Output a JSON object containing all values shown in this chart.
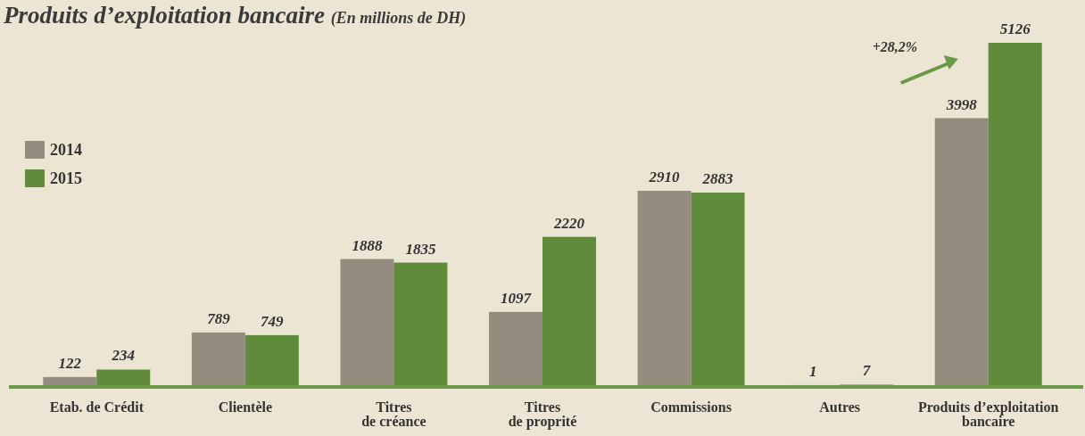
{
  "chart_data": {
    "type": "bar",
    "title": "Produits d’exploitation bancaire",
    "subtitle": "(En millions de DH)",
    "categories": [
      "Etab. de Crédit",
      "Clientèle",
      "Titres\nde créance",
      "Titres\nde proprité",
      "Commissions",
      "Autres",
      "Produits d’exploitation\nbancaire"
    ],
    "series": [
      {
        "name": "2014",
        "color": "#958c80",
        "values": [
          122,
          789,
          1888,
          1097,
          2910,
          1,
          3998
        ]
      },
      {
        "name": "2015",
        "color": "#5f8b3b",
        "values": [
          234,
          749,
          1835,
          2220,
          2883,
          7,
          5126
        ]
      }
    ],
    "data_labels": true,
    "legend": "left",
    "annotations": [
      "+28,2%"
    ]
  }
}
